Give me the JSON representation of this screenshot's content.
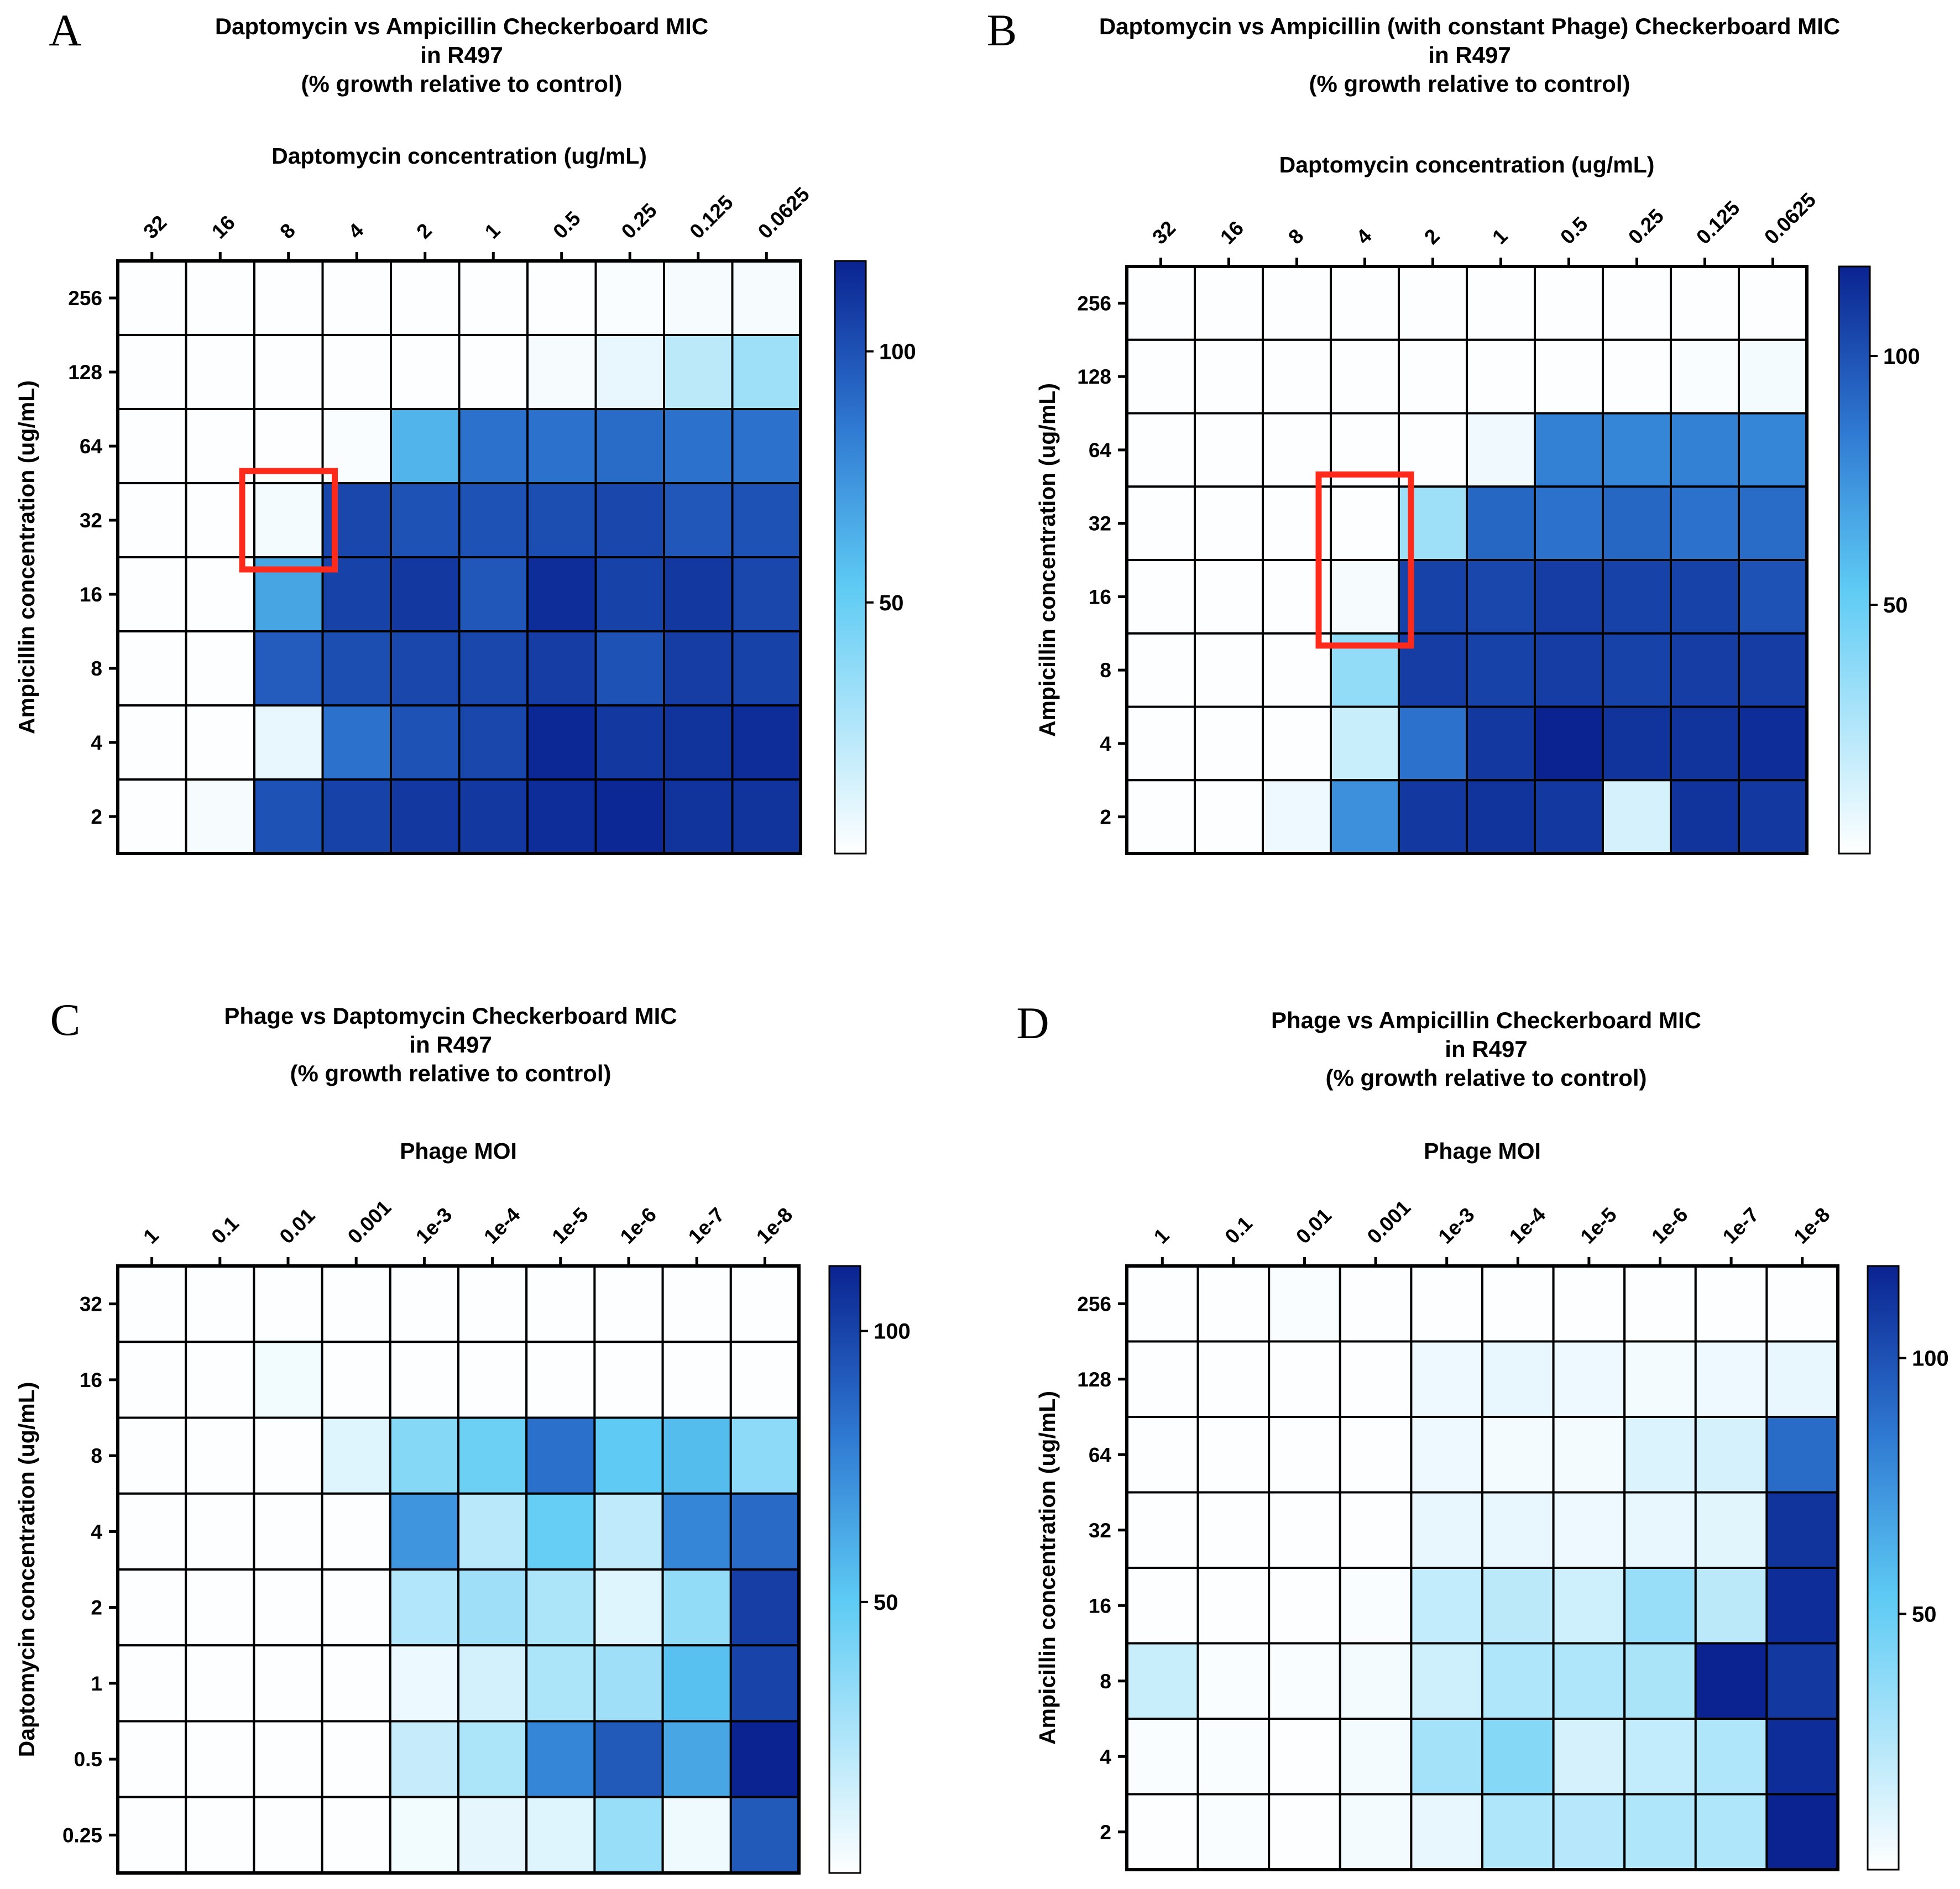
{
  "chart_data": [
    {
      "panel": "A",
      "type": "heatmap",
      "title": [
        "Daptomycin vs Ampicillin Checkerboard MIC",
        "in R497",
        "(% growth relative to control)"
      ],
      "xlabel": "Daptomycin concentration (ug/mL)",
      "ylabel": "Ampicillin concentration (ug/mL)",
      "x_categories": [
        "32",
        "16",
        "8",
        "4",
        "2",
        "1",
        "0.5",
        "0.25",
        "0.125",
        "0.0625"
      ],
      "y_categories": [
        "256",
        "128",
        "64",
        "32",
        "16",
        "8",
        "4",
        "2"
      ],
      "values": [
        [
          1,
          1,
          1,
          1,
          1,
          1,
          1,
          2,
          3,
          3
        ],
        [
          1,
          1,
          1,
          1,
          1,
          1,
          3,
          8,
          22,
          32
        ],
        [
          1,
          1,
          1,
          2,
          62,
          88,
          88,
          90,
          88,
          88
        ],
        [
          1,
          1,
          4,
          104,
          100,
          100,
          102,
          104,
          98,
          100
        ],
        [
          1,
          1,
          68,
          106,
          110,
          98,
          114,
          106,
          110,
          104
        ],
        [
          1,
          1,
          96,
          102,
          104,
          104,
          108,
          100,
          108,
          106
        ],
        [
          1,
          1,
          8,
          88,
          100,
          104,
          116,
          110,
          112,
          114
        ],
        [
          1,
          3,
          100,
          106,
          110,
          110,
          114,
          116,
          112,
          112
        ]
      ],
      "colorbar": {
        "range": [
          0,
          118
        ],
        "ticks": [
          50,
          100
        ]
      },
      "highlight": {
        "rows": [
          "32"
        ],
        "cols": [
          "8"
        ],
        "color": "#ff2a1a"
      }
    },
    {
      "panel": "B",
      "type": "heatmap",
      "title": [
        "Daptomycin vs Ampicillin (with constant Phage) Checkerboard MIC",
        "in R497",
        "(% growth relative to control)"
      ],
      "xlabel": "Daptomycin concentration (ug/mL)",
      "ylabel": "Ampicillin concentration (ug/mL)",
      "x_categories": [
        "32",
        "16",
        "8",
        "4",
        "2",
        "1",
        "0.5",
        "0.25",
        "0.125",
        "0.0625"
      ],
      "y_categories": [
        "256",
        "128",
        "64",
        "32",
        "16",
        "8",
        "4",
        "2"
      ],
      "values": [
        [
          1,
          1,
          1,
          1,
          1,
          1,
          1,
          1,
          1,
          1
        ],
        [
          1,
          1,
          1,
          1,
          1,
          1,
          1,
          1,
          2,
          4
        ],
        [
          1,
          1,
          1,
          1,
          1,
          5,
          82,
          80,
          82,
          80
        ],
        [
          1,
          1,
          1,
          1,
          32,
          92,
          88,
          92,
          88,
          90
        ],
        [
          1,
          1,
          1,
          3,
          106,
          104,
          108,
          106,
          106,
          100
        ],
        [
          1,
          1,
          1,
          36,
          108,
          106,
          108,
          106,
          108,
          108
        ],
        [
          1,
          1,
          1,
          18,
          88,
          110,
          118,
          112,
          112,
          114
        ],
        [
          1,
          1,
          6,
          76,
          110,
          112,
          110,
          14,
          112,
          110
        ]
      ],
      "colorbar": {
        "range": [
          0,
          118
        ],
        "ticks": [
          50,
          100
        ]
      },
      "highlight": {
        "rows": [
          "32",
          "16"
        ],
        "cols": [
          "4"
        ],
        "color": "#ff2a1a"
      }
    },
    {
      "panel": "C",
      "type": "heatmap",
      "title": [
        "Phage vs Daptomycin Checkerboard MIC",
        "in R497",
        "(% growth relative to control)"
      ],
      "xlabel": "Phage MOI",
      "ylabel": "Daptomycin concentration (ug/mL)",
      "x_categories": [
        "1",
        "0.1",
        "0.01",
        "0.001",
        "1e-3",
        "1e-4",
        "1e-5",
        "1e-6",
        "1e-7",
        "1e-8"
      ],
      "y_categories": [
        "32",
        "16",
        "8",
        "4",
        "2",
        "1",
        "0.5",
        "0.25"
      ],
      "values": [
        [
          1,
          1,
          1,
          1,
          1,
          1,
          1,
          1,
          1,
          1
        ],
        [
          1,
          1,
          4,
          1,
          1,
          1,
          1,
          1,
          1,
          1
        ],
        [
          1,
          1,
          1,
          10,
          38,
          46,
          84,
          50,
          56,
          36
        ],
        [
          1,
          1,
          1,
          1,
          70,
          22,
          48,
          20,
          76,
          86
        ],
        [
          1,
          1,
          1,
          1,
          24,
          30,
          26,
          10,
          34,
          102
        ],
        [
          1,
          1,
          1,
          1,
          6,
          14,
          26,
          30,
          54,
          100
        ],
        [
          1,
          1,
          1,
          1,
          18,
          26,
          76,
          92,
          64,
          112
        ],
        [
          1,
          1,
          1,
          1,
          4,
          8,
          10,
          32,
          5,
          92
        ]
      ],
      "colorbar": {
        "range": [
          0,
          112
        ],
        "ticks": [
          50,
          100
        ]
      },
      "highlight": null
    },
    {
      "panel": "D",
      "type": "heatmap",
      "title": [
        "Phage vs Ampicillin Checkerboard MIC",
        "in R497",
        "(% growth relative to control)"
      ],
      "xlabel": "Phage MOI",
      "ylabel": "Ampicillin concentration (ug/mL)",
      "x_categories": [
        "1",
        "0.1",
        "0.01",
        "0.001",
        "1e-3",
        "1e-4",
        "1e-5",
        "1e-6",
        "1e-7",
        "1e-8"
      ],
      "y_categories": [
        "256",
        "128",
        "64",
        "32",
        "16",
        "8",
        "4",
        "2"
      ],
      "values": [
        [
          1,
          1,
          2,
          1,
          1,
          1,
          1,
          1,
          1,
          1
        ],
        [
          1,
          1,
          1,
          1,
          6,
          8,
          6,
          4,
          6,
          8
        ],
        [
          1,
          1,
          1,
          1,
          6,
          4,
          4,
          12,
          14,
          90
        ],
        [
          1,
          1,
          1,
          1,
          8,
          8,
          6,
          8,
          10,
          112
        ],
        [
          1,
          1,
          1,
          2,
          20,
          22,
          16,
          34,
          22,
          114
        ],
        [
          18,
          2,
          2,
          4,
          16,
          26,
          26,
          28,
          118,
          110
        ],
        [
          2,
          2,
          1,
          4,
          30,
          40,
          14,
          20,
          26,
          114
        ],
        [
          1,
          2,
          1,
          4,
          8,
          26,
          24,
          26,
          26,
          118
        ]
      ],
      "colorbar": {
        "range": [
          0,
          118
        ],
        "ticks": [
          50,
          100
        ]
      },
      "highlight": null
    }
  ],
  "palette": {
    "low": "#ffffff",
    "mid": "#5ecbf4",
    "high": "#0a2390",
    "grid": "#000000",
    "highlight": "#ff2a1a"
  }
}
